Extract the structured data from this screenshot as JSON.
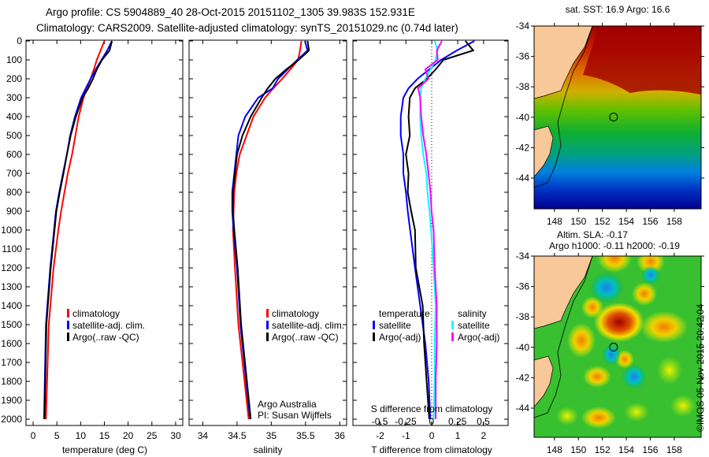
{
  "title": {
    "line1": "Argo profile: CS 5904889_40 28-Oct-2015 20151102_1305 39.983S 152.931E",
    "line2": "Climatology: CARS2009. Satellite-adjusted climatology: synTS_20151029.nc (0.74d later)"
  },
  "colors": {
    "climatology": "#ff0000",
    "satellite": "#0000ff",
    "argo": "#000000",
    "sal_satellite": "#00ffff",
    "sal_argo": "#ff00ff"
  },
  "chart_data": [
    {
      "type": "line",
      "name": "temperature",
      "xlabel": "temperature (deg C)",
      "xlim": [
        -1.5,
        31.5
      ],
      "ylim": [
        2040,
        0
      ],
      "xticks": [
        "0",
        "5",
        "10",
        "15",
        "20",
        "25",
        "30"
      ],
      "yticks": [
        "0",
        "100",
        "200",
        "300",
        "400",
        "500",
        "600",
        "700",
        "800",
        "900",
        "1000",
        "1100",
        "1200",
        "1300",
        "1400",
        "1500",
        "1600",
        "1700",
        "1800",
        "1900",
        "2000"
      ],
      "depth": [
        0,
        50,
        100,
        150,
        200,
        250,
        300,
        400,
        500,
        600,
        700,
        800,
        900,
        1000,
        1200,
        1500,
        2000
      ],
      "series": [
        {
          "name": "climatology",
          "values": [
            15.0,
            14.2,
            13.4,
            12.8,
            12.1,
            11.3,
            10.6,
            9.6,
            8.9,
            8.2,
            7.3,
            6.6,
            5.9,
            5.3,
            4.3,
            3.3,
            2.7
          ]
        },
        {
          "name": "satellite-adj. clim.",
          "values": [
            16.6,
            15.6,
            14.4,
            13.2,
            12.1,
            11.1,
            10.1,
            8.8,
            7.8,
            7.1,
            6.3,
            5.5,
            4.8,
            4.4,
            3.6,
            2.7,
            2.3
          ]
        },
        {
          "name": "Argo(..raw -QC)",
          "values": [
            16.6,
            16.1,
            14.5,
            13.4,
            12.6,
            11.6,
            10.4,
            9.0,
            7.9,
            7.1,
            6.4,
            5.6,
            4.9,
            4.5,
            3.7,
            2.8,
            2.4
          ]
        }
      ],
      "legend": [
        "climatology",
        "satellite-adj. clim.",
        "Argo(..raw -QC)"
      ]
    },
    {
      "type": "line",
      "name": "salinity",
      "xlabel": "salinity",
      "xlim": [
        33.8,
        36.1
      ],
      "xticks": [
        "34",
        "34.5",
        "35",
        "35.5",
        "36"
      ],
      "depth": [
        0,
        50,
        100,
        150,
        200,
        250,
        300,
        400,
        500,
        600,
        700,
        800,
        900,
        1000,
        1200,
        1500,
        2000
      ],
      "series": [
        {
          "name": "climatology",
          "values": [
            35.44,
            35.42,
            35.39,
            35.28,
            35.16,
            35.03,
            34.91,
            34.74,
            34.64,
            34.54,
            34.49,
            34.46,
            34.45,
            34.44,
            34.47,
            34.52,
            34.67
          ]
        },
        {
          "name": "satellite-adj. clim.",
          "values": [
            35.49,
            35.53,
            35.38,
            35.24,
            35.1,
            35.02,
            34.81,
            34.62,
            34.52,
            34.49,
            34.46,
            34.43,
            34.43,
            34.45,
            34.5,
            34.55,
            34.69
          ]
        },
        {
          "name": "Argo(..raw -QC)",
          "values": [
            35.53,
            35.55,
            35.4,
            35.22,
            35.06,
            34.95,
            34.86,
            34.7,
            34.58,
            34.5,
            34.47,
            34.44,
            34.44,
            34.46,
            34.51,
            34.56,
            34.7
          ]
        }
      ],
      "legend": [
        "climatology",
        "satellite-adj. clim.",
        "Argo(..raw -QC)"
      ],
      "annotation": [
        "Argo Australia",
        "PI: Susan Wijffels"
      ]
    },
    {
      "type": "line",
      "name": "difference",
      "xlabel": "T difference from climatology",
      "xlabel2": "S difference from climatology",
      "xlim": [
        -3.05,
        2.95
      ],
      "xlim2": [
        -0.76,
        0.74
      ],
      "xticks": [
        "-2",
        "-1",
        "0",
        "1",
        "2"
      ],
      "xticks2": [
        "-0.5",
        "-0.25",
        "0",
        "0.25",
        "0.5"
      ],
      "depth": [
        0,
        50,
        100,
        150,
        200,
        250,
        300,
        400,
        500,
        600,
        700,
        800,
        900,
        1000,
        1200,
        1400,
        1600,
        1800,
        2000
      ],
      "series": [
        {
          "name": "temperature satellite",
          "axis": "T",
          "values": [
            1.65,
            0.97,
            0.36,
            -0.1,
            -0.55,
            -0.9,
            -1.1,
            -1.2,
            -1.2,
            -1.1,
            -1.1,
            -1.0,
            -0.93,
            -0.84,
            -0.65,
            -0.45,
            -0.25,
            -0.12,
            -0.06
          ]
        },
        {
          "name": "temperature Argo(-adj)",
          "axis": "T",
          "values": [
            1.3,
            1.6,
            0.45,
            0.15,
            -0.19,
            -0.65,
            -0.85,
            -0.9,
            -0.85,
            -1.0,
            -0.9,
            -0.93,
            -0.8,
            -0.65,
            -0.62,
            -0.35,
            -0.3,
            -0.2,
            -0.1
          ]
        },
        {
          "name": "salinity satellite",
          "axis": "S",
          "values": [
            0.03,
            0.06,
            0.04,
            -0.01,
            -0.06,
            -0.1,
            -0.11,
            -0.11,
            -0.1,
            -0.08,
            -0.05,
            -0.04,
            -0.02,
            -0.005,
            0.02,
            0.04,
            0.03,
            0.03,
            0.02
          ]
        },
        {
          "name": "salinity Argo(-adj)",
          "axis": "S",
          "values": [
            0.1,
            0.05,
            0.06,
            -0.06,
            -0.03,
            -0.13,
            -0.11,
            -0.1,
            -0.08,
            -0.05,
            -0.03,
            -0.01,
            0.0,
            0.02,
            0.03,
            0.05,
            0.05,
            0.04,
            0.04
          ]
        }
      ],
      "legend": {
        "temp_header": "temperature",
        "sal_header": "salinity",
        "satellite": "satellite",
        "argo": "Argo(-adj)"
      }
    }
  ],
  "maps": {
    "sst": {
      "title": "sat. SST: 16.9 Argo: 16.6"
    },
    "sla": {
      "title1": "Altim. SLA: -0.17",
      "title2": "Argo h1000: -0.11 h2000: -0.19"
    },
    "lat_ticks": [
      "-34",
      "-36",
      "-38",
      "-40",
      "-42",
      "-44"
    ],
    "lon_ticks": [
      "148",
      "150",
      "152",
      "154",
      "156",
      "158"
    ],
    "float_position": {
      "lon": 152.931,
      "lat": -39.983
    },
    "credit": "©IMOS 05-Nov-2015 20:42:04"
  }
}
